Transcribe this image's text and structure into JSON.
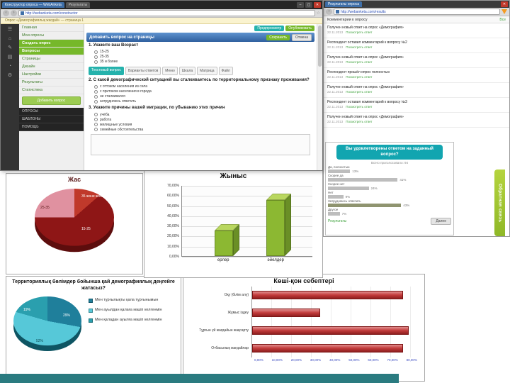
{
  "page": {
    "bottom_bar_color": "#2a7b80"
  },
  "survey_window": {
    "tabs": [
      "Конструктор опроса — WebAnketa",
      "Результаты"
    ],
    "url": "http://webanketa.com/constructor",
    "notice": "Опрос «Демографиялық жағдай» — страница 1",
    "menu": {
      "items": [
        {
          "label": "Главная",
          "active": false
        },
        {
          "label": "Мои опросы",
          "active": false
        },
        {
          "label": "Создать опрос",
          "active": true
        },
        {
          "label": "Вопросы",
          "active": true
        },
        {
          "label": "Страницы",
          "active": false
        },
        {
          "label": "Дизайн",
          "active": false
        },
        {
          "label": "Настройки",
          "active": false
        },
        {
          "label": "Результаты",
          "active": false
        },
        {
          "label": "Статистика",
          "active": false
        }
      ],
      "add_button": "Добавить вопрос",
      "footer_items": [
        "ОПРОСЫ",
        "ШАБЛОНЫ",
        "ПОМОЩЬ"
      ]
    },
    "toolbar": {
      "preview": "Предпросмотр",
      "publish": "Опубликовать"
    },
    "header": {
      "title": "Добавить вопрос на страницы",
      "save": "Сохранить",
      "cancel": "Отмена"
    },
    "type_buttons": {
      "primary": "Текстовый вопрос",
      "others": [
        "Варианты ответов",
        "Меню",
        "Шкала",
        "Матрица",
        "Файл"
      ]
    },
    "questions": [
      {
        "title": "1. Укажите ваш Возраст",
        "options": [
          "15-25",
          "25-35",
          "35 и более"
        ]
      },
      {
        "title": "2. С какой демографической ситуацией вы сталкиваетесь по территориальному признаку проживания?",
        "options": [
          "с оттоком населения из села",
          "с притоком населения в города",
          "не сталкивался",
          "затрудняюсь ответить"
        ]
      },
      {
        "title": "3. Укажите причины вашей миграции, по убыванию этих причин",
        "options": [
          "учёба",
          "работа",
          "жилищные условия",
          "семейные обстоятельства"
        ]
      }
    ]
  },
  "results_window": {
    "tab": "Результаты опроса",
    "url": "http://webanketa.com/results",
    "section": "Комментарии к опросу",
    "all_link": "Все",
    "comments": [
      {
        "text": "Получен новый ответ на опрос «Демография»",
        "date": "22.11.2013",
        "link": "Посмотреть ответ"
      },
      {
        "text": "Респондент оставил комментарий к вопросу №2",
        "date": "22.11.2013",
        "link": "Посмотреть ответ"
      },
      {
        "text": "Получен новый ответ на опрос «Демография»",
        "date": "22.11.2013",
        "link": "Посмотреть ответ"
      },
      {
        "text": "Респондент прошёл опрос полностью",
        "date": "22.11.2013",
        "link": "Посмотреть ответ"
      },
      {
        "text": "Получен новый ответ на опрос «Демография»",
        "date": "22.11.2013",
        "link": "Посмотреть ответ"
      },
      {
        "text": "Респондент оставил комментарий к вопросу №3",
        "date": "22.11.2013",
        "link": "Посмотреть ответ"
      },
      {
        "text": "Получен новый ответ на опрос «Демография»",
        "date": "22.11.2013",
        "link": "Посмотреть ответ"
      }
    ]
  },
  "poll_widget": {
    "votes": "Всего проголосовало: 94",
    "results_link": "Результаты",
    "next_button": "Далее",
    "feedback_tab": "Обратная связь"
  },
  "chart_data": [
    {
      "id": "age_pie",
      "type": "pie",
      "title": "Жас",
      "slices": [
        {
          "label": "35 және жоғары",
          "value": 11,
          "color": "#c0392b"
        },
        {
          "label": "15-25",
          "value": 64,
          "color": "#8e1616"
        },
        {
          "label": "25-35",
          "value": 25,
          "color": "#e091a0"
        }
      ],
      "rim_color": "#5d0d0d"
    },
    {
      "id": "gender_bar",
      "type": "bar",
      "title": "Жыныс",
      "categories": [
        "ерлер",
        "әйелдер"
      ],
      "values": [
        25,
        55
      ],
      "ylim": [
        0,
        70
      ],
      "yticks": [
        0,
        10,
        20,
        30,
        40,
        50,
        60,
        70
      ],
      "ytick_suffix": ",00%",
      "bar_color": "#8cb832",
      "bar_top_color": "#b9d75f",
      "bar_side_color": "#6a8f26"
    },
    {
      "id": "territory_pie",
      "type": "pie",
      "title": "Территориялық бөлімдер бойынша қай демографиялық деңгейге жатасыз?",
      "slices": [
        {
          "label": "29%",
          "value": 29,
          "color": "#1f7f9b"
        },
        {
          "label": "52%",
          "value": 52,
          "color": "#56c8d8"
        },
        {
          "label": "19%",
          "value": 19,
          "color": "#2a9fae"
        }
      ],
      "rim_color": "#0e5563",
      "legend": [
        "Мен тұрғылықты қала тұрғынымын",
        "Мен ауылдан қалаға көшіп келгенмін",
        "Мен қаладан ауылға көшіп келгенмін"
      ]
    },
    {
      "id": "migration_bar",
      "type": "bar-horizontal",
      "title": "Көші-қон себептері",
      "categories": [
        "Оқу (білім алу)",
        "Жұмыс іздеу",
        "Тұрғын үй жағдайын жақсарту",
        "Отбасылық жағдайлар"
      ],
      "values": [
        73,
        33,
        76,
        73
      ],
      "xlim": [
        0,
        80
      ],
      "xticks": [
        "0,00%",
        "10,00%",
        "20,00%",
        "30,00%",
        "40,00%",
        "50,00%",
        "60,00%",
        "70,00%",
        "80,00%"
      ],
      "bar_color": "#c23b3b"
    },
    {
      "id": "poll_bars",
      "type": "bar-horizontal",
      "title": "Вы удовлетворены ответом на заданный вопрос?",
      "categories": [
        "Да, полностью",
        "Скорее да",
        "Скорее нет",
        "Нет",
        "Затрудняюсь ответить",
        "Другое"
      ],
      "values": [
        13,
        41,
        24,
        9,
        43,
        7
      ],
      "colors": [
        "#bdbdbd",
        "#bdbdbd",
        "#bdbdbd",
        "#bdbdbd",
        "#8f9470",
        "#bdbdbd"
      ]
    }
  ]
}
